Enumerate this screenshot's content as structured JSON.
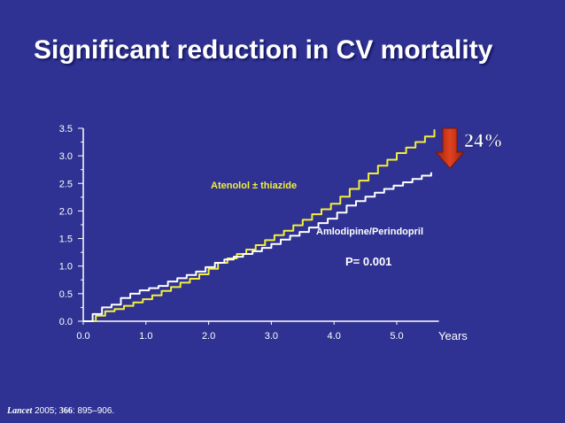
{
  "slide": {
    "title": "Significant reduction in CV mortality",
    "citation": {
      "journal": "Lancet",
      "year": " 2005; ",
      "volume": "366",
      "pages": ": 895–906."
    }
  },
  "colors": {
    "background": "#2f3292",
    "atenolol": "#f2ef3a",
    "amlodipine": "#ffffff",
    "arrow": "#d83a1e",
    "label_yellow": "#f2ef3a"
  },
  "chart_data": {
    "type": "line",
    "xlabel": "Years",
    "ylabel": "",
    "xlim": [
      0,
      5.7
    ],
    "ylim": [
      0,
      3.5
    ],
    "x_ticks": [
      "0.0",
      "1.0",
      "2.0",
      "3.0",
      "4.0",
      "5.0"
    ],
    "y_ticks": [
      "0.0",
      "0.5",
      "1.0",
      "1.5",
      "2.0",
      "2.5",
      "3.0",
      "3.5"
    ],
    "grid": false,
    "series": [
      {
        "name": "Atenolol ± thiazide",
        "color": "#f2ef3a",
        "x": [
          0,
          0.2,
          0.35,
          0.5,
          0.65,
          0.8,
          0.95,
          1.1,
          1.25,
          1.4,
          1.55,
          1.7,
          1.85,
          2.0,
          2.15,
          2.3,
          2.45,
          2.6,
          2.75,
          2.9,
          3.05,
          3.2,
          3.35,
          3.5,
          3.65,
          3.8,
          3.95,
          4.1,
          4.25,
          4.4,
          4.55,
          4.7,
          4.85,
          5.0,
          5.15,
          5.3,
          5.45,
          5.6
        ],
        "y": [
          0,
          0.1,
          0.18,
          0.22,
          0.28,
          0.34,
          0.4,
          0.47,
          0.55,
          0.62,
          0.7,
          0.77,
          0.85,
          0.95,
          1.06,
          1.14,
          1.22,
          1.3,
          1.38,
          1.47,
          1.56,
          1.64,
          1.74,
          1.84,
          1.94,
          2.03,
          2.13,
          2.26,
          2.4,
          2.55,
          2.68,
          2.82,
          2.93,
          3.05,
          3.15,
          3.25,
          3.35,
          3.48
        ]
      },
      {
        "name": "Amlodipine/Perindopril",
        "color": "#ffffff",
        "x": [
          0,
          0.15,
          0.3,
          0.45,
          0.6,
          0.75,
          0.9,
          1.05,
          1.2,
          1.35,
          1.5,
          1.65,
          1.8,
          1.95,
          2.1,
          2.25,
          2.4,
          2.55,
          2.7,
          2.85,
          3.0,
          3.15,
          3.3,
          3.45,
          3.6,
          3.75,
          3.9,
          4.05,
          4.2,
          4.35,
          4.5,
          4.65,
          4.8,
          4.95,
          5.1,
          5.25,
          5.4,
          5.55
        ],
        "y": [
          0,
          0.13,
          0.25,
          0.3,
          0.42,
          0.5,
          0.56,
          0.6,
          0.64,
          0.72,
          0.78,
          0.84,
          0.9,
          0.98,
          1.06,
          1.12,
          1.17,
          1.22,
          1.27,
          1.33,
          1.4,
          1.48,
          1.55,
          1.62,
          1.7,
          1.78,
          1.86,
          1.97,
          2.1,
          2.18,
          2.26,
          2.33,
          2.4,
          2.46,
          2.52,
          2.58,
          2.64,
          2.7
        ]
      }
    ],
    "annotations": {
      "reduction": "24%",
      "p_value": "P= 0.001",
      "series_label_1": "Atenolol ± thiazide",
      "series_label_2": "Amlodipine/Perindopril"
    }
  }
}
